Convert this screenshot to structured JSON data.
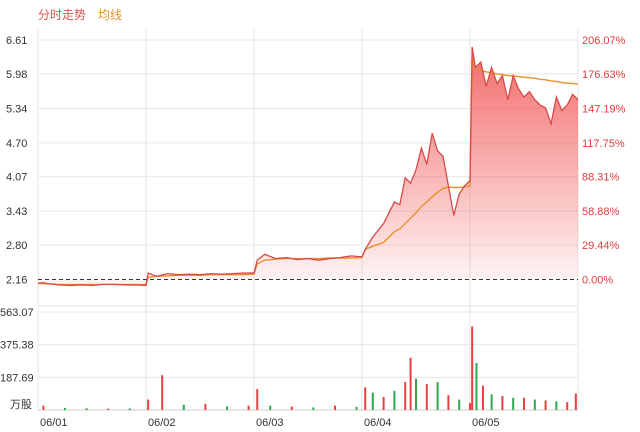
{
  "legend": {
    "price_label": "分时走势",
    "avg_label": "均线"
  },
  "colors": {
    "price_line": "#d84a4a",
    "avg_line": "#e8902a",
    "area_fill": "#f25a5a",
    "left_axis_text": "#333333",
    "right_axis_text": "#e03c3c",
    "grid": "#e6e6e6",
    "baseline": "#333333",
    "vol_up": "#e84040",
    "vol_down": "#2ea84e"
  },
  "chart_data": [
    {
      "type": "line",
      "title": "",
      "days": [
        "06/01",
        "06/02",
        "06/03",
        "06/04",
        "06/05"
      ],
      "x": [
        0.0,
        0.05,
        0.1,
        0.2,
        0.3,
        0.4,
        0.5,
        0.6,
        0.7,
        0.8,
        0.9,
        1.0,
        1.02,
        1.1,
        1.2,
        1.3,
        1.4,
        1.5,
        1.6,
        1.7,
        1.8,
        1.9,
        2.0,
        2.03,
        2.1,
        2.2,
        2.3,
        2.4,
        2.5,
        2.6,
        2.7,
        2.8,
        2.9,
        3.0,
        3.03,
        3.1,
        3.2,
        3.3,
        3.35,
        3.4,
        3.45,
        3.5,
        3.55,
        3.6,
        3.65,
        3.7,
        3.75,
        3.8,
        3.85,
        3.9,
        3.95,
        4.0,
        4.02,
        4.05,
        4.1,
        4.15,
        4.2,
        4.25,
        4.3,
        4.35,
        4.4,
        4.45,
        4.5,
        4.55,
        4.6,
        4.65,
        4.7,
        4.75,
        4.8,
        4.85,
        4.9,
        4.95,
        5.0
      ],
      "series": [
        {
          "name": "分时走势",
          "values": [
            2.09,
            2.1,
            2.08,
            2.06,
            2.05,
            2.06,
            2.05,
            2.07,
            2.07,
            2.06,
            2.06,
            2.05,
            2.28,
            2.22,
            2.27,
            2.25,
            2.26,
            2.25,
            2.27,
            2.26,
            2.27,
            2.28,
            2.28,
            2.52,
            2.63,
            2.55,
            2.57,
            2.53,
            2.55,
            2.52,
            2.55,
            2.57,
            2.6,
            2.58,
            2.72,
            2.95,
            3.2,
            3.6,
            3.55,
            4.05,
            3.95,
            4.2,
            4.6,
            4.3,
            4.88,
            4.55,
            4.45,
            3.9,
            3.35,
            3.75,
            3.9,
            4.0,
            6.48,
            6.1,
            6.2,
            5.75,
            6.1,
            5.8,
            5.95,
            5.5,
            5.95,
            5.7,
            5.55,
            5.65,
            5.5,
            5.4,
            5.35,
            5.05,
            5.55,
            5.3,
            5.4,
            5.6,
            5.5
          ]
        },
        {
          "name": "均线",
          "values": [
            2.09,
            2.08,
            2.08,
            2.07,
            2.07,
            2.07,
            2.07,
            2.07,
            2.07,
            2.07,
            2.07,
            2.07,
            2.2,
            2.22,
            2.23,
            2.24,
            2.24,
            2.24,
            2.25,
            2.25,
            2.25,
            2.25,
            2.26,
            2.45,
            2.52,
            2.54,
            2.55,
            2.55,
            2.55,
            2.55,
            2.56,
            2.56,
            2.56,
            2.57,
            2.72,
            2.78,
            2.85,
            3.05,
            3.1,
            3.2,
            3.3,
            3.4,
            3.52,
            3.6,
            3.7,
            3.78,
            3.85,
            3.88,
            3.87,
            3.87,
            3.88,
            3.9,
            6.25,
            6.1,
            6.05,
            6.02,
            6.0,
            5.98,
            5.97,
            5.95,
            5.94,
            5.93,
            5.92,
            5.91,
            5.9,
            5.88,
            5.87,
            5.85,
            5.84,
            5.82,
            5.81,
            5.8,
            5.79
          ]
        }
      ],
      "ylim": [
        1.78,
        6.61
      ],
      "y_ticks_left": [
        "6.61",
        "5.98",
        "5.34",
        "4.70",
        "4.07",
        "3.43",
        "2.80",
        "2.16"
      ],
      "y_ticks_right": [
        "206.07%",
        "176.63%",
        "147.19%",
        "117.75%",
        "88.31%",
        "58.88%",
        "29.44%",
        "0.00%"
      ],
      "y_tick_values": [
        6.61,
        5.98,
        5.34,
        4.7,
        4.07,
        3.43,
        2.8,
        2.16
      ],
      "reference_price": 2.16,
      "grid": true
    },
    {
      "type": "bar",
      "title": "",
      "unit_label": "万股",
      "y_ticks": [
        "563.07",
        "375.38",
        "187.69"
      ],
      "y_tick_values": [
        563.07,
        375.38,
        187.69
      ],
      "ylim": [
        0,
        563.07
      ],
      "x": [
        0.05,
        0.25,
        0.45,
        0.65,
        0.85,
        1.02,
        1.15,
        1.35,
        1.55,
        1.75,
        1.95,
        2.03,
        2.15,
        2.35,
        2.55,
        2.75,
        2.95,
        3.03,
        3.1,
        3.2,
        3.3,
        3.4,
        3.45,
        3.5,
        3.6,
        3.7,
        3.8,
        3.9,
        4.0,
        4.02,
        4.06,
        4.12,
        4.2,
        4.3,
        4.4,
        4.5,
        4.6,
        4.7,
        4.8,
        4.9,
        4.98
      ],
      "values": [
        25,
        12,
        10,
        8,
        9,
        60,
        200,
        30,
        35,
        20,
        25,
        120,
        25,
        20,
        15,
        25,
        18,
        130,
        100,
        75,
        110,
        160,
        300,
        180,
        150,
        160,
        85,
        60,
        40,
        480,
        270,
        140,
        90,
        80,
        70,
        70,
        60,
        55,
        50,
        45,
        95
      ],
      "colors": [
        "up",
        "down",
        "down",
        "up",
        "down",
        "up",
        "up",
        "down",
        "up",
        "down",
        "up",
        "up",
        "down",
        "up",
        "down",
        "up",
        "down",
        "up",
        "down",
        "up",
        "down",
        "up",
        "up",
        "down",
        "up",
        "down",
        "up",
        "down",
        "up",
        "up",
        "down",
        "up",
        "down",
        "up",
        "down",
        "up",
        "down",
        "up",
        "down",
        "up",
        "up"
      ]
    }
  ]
}
